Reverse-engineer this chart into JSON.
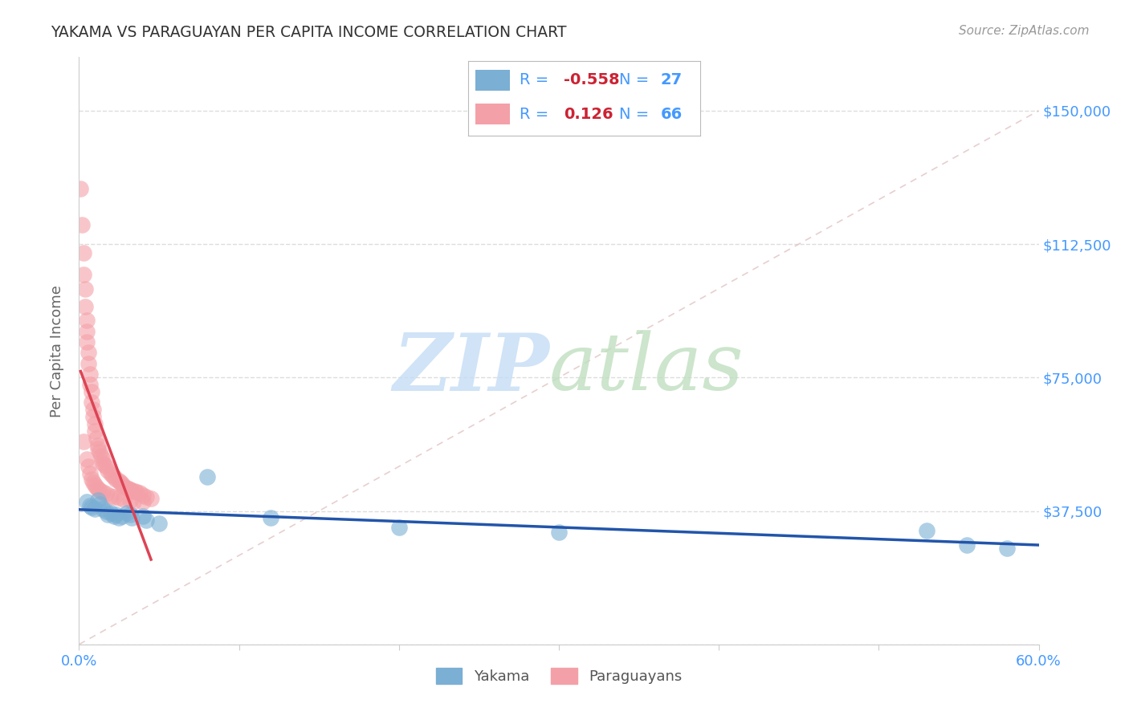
{
  "title": "YAKAMA VS PARAGUAYAN PER CAPITA INCOME CORRELATION CHART",
  "source": "Source: ZipAtlas.com",
  "ylabel": "Per Capita Income",
  "xlim": [
    0.0,
    0.6
  ],
  "ylim": [
    0,
    165000
  ],
  "ytick_positions": [
    0,
    37500,
    75000,
    112500,
    150000
  ],
  "ytick_labels": [
    "",
    "$37,500",
    "$75,000",
    "$112,500",
    "$150,000"
  ],
  "yakama_color": "#7bafd4",
  "paraguayan_color": "#f4a0a8",
  "yakama_line_color": "#2255aa",
  "paraguayan_line_color": "#dd4455",
  "background_color": "#ffffff",
  "title_color": "#333333",
  "source_color": "#999999",
  "axis_label_color": "#666666",
  "tick_label_color": "#4499ff",
  "legend_label_color": "#4499ff",
  "value_color": "#cc2233",
  "watermark_zip_color": "#c5ddf5",
  "watermark_atlas_color": "#c0dfc0",
  "yakama_x": [
    0.005,
    0.007,
    0.008,
    0.01,
    0.012,
    0.013,
    0.015,
    0.017,
    0.018,
    0.02,
    0.022,
    0.023,
    0.025,
    0.027,
    0.03,
    0.032,
    0.033,
    0.04,
    0.042,
    0.05,
    0.08,
    0.12,
    0.2,
    0.3,
    0.53,
    0.555,
    0.58
  ],
  "yakama_y": [
    40000,
    39000,
    38500,
    38000,
    40500,
    39500,
    38000,
    37500,
    36500,
    37000,
    36000,
    36500,
    35500,
    36000,
    37000,
    36500,
    35500,
    36000,
    35000,
    34000,
    47000,
    35500,
    33000,
    31500,
    32000,
    28000,
    27000
  ],
  "paraguayan_x": [
    0.001,
    0.002,
    0.003,
    0.003,
    0.004,
    0.004,
    0.005,
    0.005,
    0.005,
    0.006,
    0.006,
    0.007,
    0.007,
    0.008,
    0.008,
    0.009,
    0.009,
    0.01,
    0.01,
    0.011,
    0.012,
    0.012,
    0.013,
    0.014,
    0.015,
    0.015,
    0.016,
    0.017,
    0.018,
    0.02,
    0.021,
    0.022,
    0.023,
    0.025,
    0.026,
    0.027,
    0.028,
    0.03,
    0.031,
    0.032,
    0.033,
    0.035,
    0.036,
    0.038,
    0.04,
    0.042,
    0.045,
    0.003,
    0.005,
    0.006,
    0.007,
    0.008,
    0.009,
    0.01,
    0.011,
    0.012,
    0.013,
    0.015,
    0.017,
    0.02,
    0.022,
    0.025,
    0.028,
    0.032,
    0.034,
    0.04
  ],
  "paraguayan_y": [
    128000,
    118000,
    110000,
    104000,
    100000,
    95000,
    91000,
    88000,
    85000,
    82000,
    79000,
    76000,
    73000,
    71000,
    68000,
    66000,
    64000,
    62000,
    60000,
    58000,
    56000,
    55000,
    54000,
    53000,
    52000,
    51000,
    50500,
    50000,
    49000,
    48000,
    47500,
    47000,
    46500,
    46000,
    45500,
    45000,
    44500,
    44000,
    43700,
    43400,
    43200,
    43000,
    42800,
    42500,
    42000,
    41500,
    41000,
    57000,
    52000,
    50000,
    48000,
    46500,
    45500,
    44800,
    44200,
    43700,
    43300,
    42800,
    42300,
    41800,
    41500,
    41200,
    40800,
    40500,
    40200,
    40000
  ]
}
